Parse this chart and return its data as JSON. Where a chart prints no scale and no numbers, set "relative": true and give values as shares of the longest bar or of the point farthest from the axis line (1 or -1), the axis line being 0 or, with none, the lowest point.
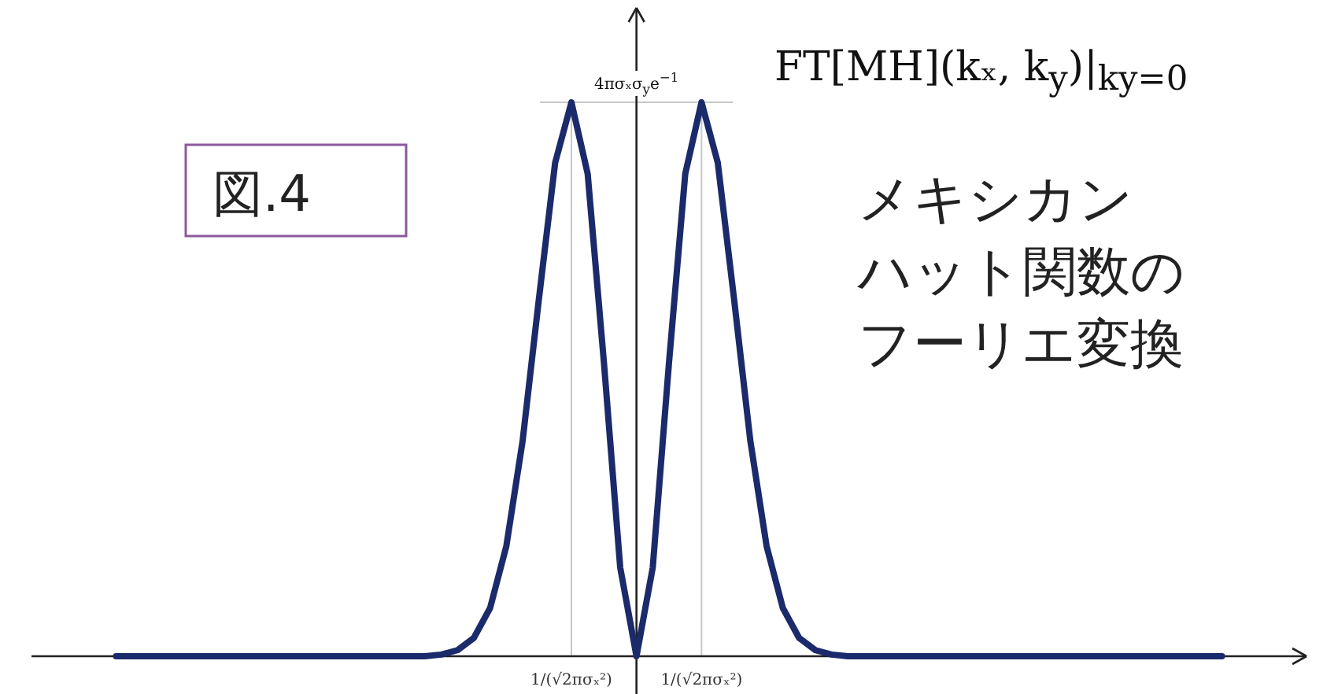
{
  "chart_data": {
    "type": "line",
    "title": "FT[MH](kₓ, k$_{y}$)|$_{ky=0}$",
    "annotations": [
      "図.4",
      "メキシカン",
      "ハット関数の",
      "フーリエ変換"
    ],
    "relative": true,
    "categories": [
      null,
      null,
      null,
      null,
      null,
      null,
      null,
      null,
      null,
      null,
      null,
      null,
      null,
      null,
      null,
      null,
      null,
      null,
      null,
      null,
      null,
      null,
      null,
      null,
      null,
      null,
      null,
      null,
      "1/(√2πσₓ²)",
      null,
      null,
      null,
      null,
      null,
      null,
      null,
      "1/(√2πσₓ²)",
      null,
      null,
      null,
      null,
      null,
      null,
      null,
      null,
      null,
      null,
      null,
      null,
      null,
      null,
      null,
      null,
      null,
      null,
      null,
      null,
      null,
      null,
      null,
      null,
      null,
      null,
      null,
      null,
      null,
      null,
      null,
      null
    ],
    "series": [
      {
        "color": "#1b2a6b",
        "values": [
          0,
          0,
          0,
          0,
          0,
          0,
          0,
          0,
          0,
          0,
          0,
          0,
          0,
          0,
          0,
          0,
          0,
          0,
          0,
          0,
          0.003,
          0.011,
          0.033,
          0.087,
          0.199,
          0.389,
          0.645,
          0.891,
          1,
          0.871,
          0.53,
          0.16,
          0,
          0.16,
          0.53,
          0.871,
          1,
          0.891,
          0.645,
          0.389,
          0.199,
          0.087,
          0.033,
          0.011,
          0.003,
          0,
          0,
          0,
          0,
          0,
          0,
          0,
          0,
          0,
          0,
          0,
          0,
          0,
          0,
          0,
          0,
          0,
          0,
          0,
          0,
          0,
          0,
          0,
          0
        ]
      }
    ],
    "ref_lines": [
      {
        "axis": "y",
        "value": 1,
        "label": "4πσₓσ$_{y}$e$^{−1}$",
        "color": "#c8c8c8"
      }
    ],
    "grid": "x",
    "tick_labels": "x"
  }
}
